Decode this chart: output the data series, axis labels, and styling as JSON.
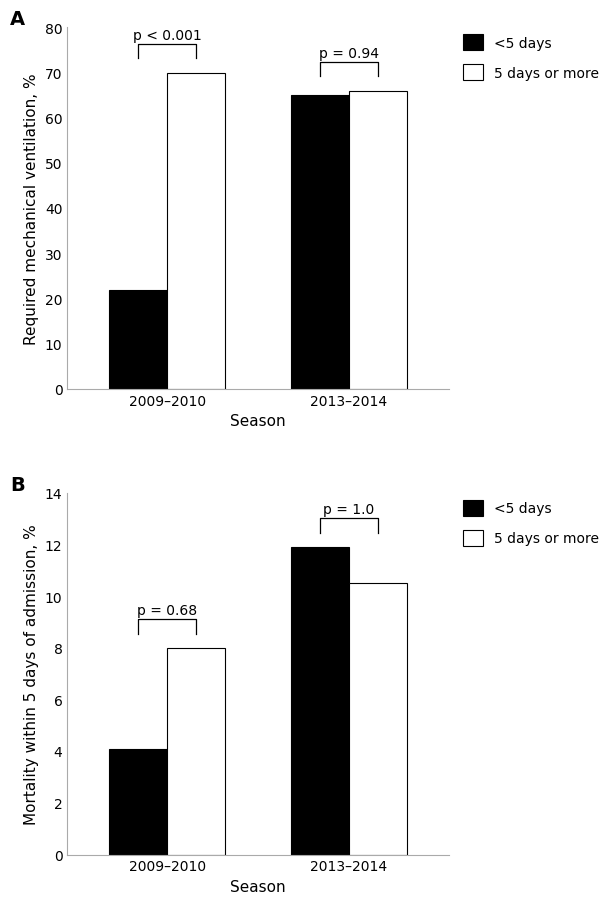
{
  "panel_A": {
    "title_label": "A",
    "categories": [
      "2009–2010",
      "2013–2014"
    ],
    "less5_values": [
      22,
      65
    ],
    "more5_values": [
      70,
      66
    ],
    "ylabel": "Required mechanical ventilation, %",
    "xlabel": "Season",
    "ylim": [
      0,
      80
    ],
    "yticks": [
      0,
      10,
      20,
      30,
      40,
      50,
      60,
      70,
      80
    ],
    "pvalues": [
      "p < 0.001",
      "p = 0.94"
    ],
    "bar_width": 0.32,
    "less5_color": "#000000",
    "more5_color": "#ffffff",
    "legend_less5": "<5 days",
    "legend_more5": "5 days or more"
  },
  "panel_B": {
    "title_label": "B",
    "categories": [
      "2009–2010",
      "2013–2014"
    ],
    "less5_values": [
      4.1,
      11.9
    ],
    "more5_values": [
      8.0,
      10.5
    ],
    "ylabel": "Mortality within 5 days of admission, %",
    "xlabel": "Season",
    "ylim": [
      0,
      14
    ],
    "yticks": [
      0,
      2,
      4,
      6,
      8,
      10,
      12,
      14
    ],
    "pvalues": [
      "p = 0.68",
      "p = 1.0"
    ],
    "bar_width": 0.32,
    "less5_color": "#000000",
    "more5_color": "#ffffff",
    "legend_less5": "<5 days",
    "legend_more5": "5 days or more"
  },
  "figure_bg": "#ffffff",
  "font_size": 11,
  "label_font_size": 14,
  "tick_font_size": 10
}
